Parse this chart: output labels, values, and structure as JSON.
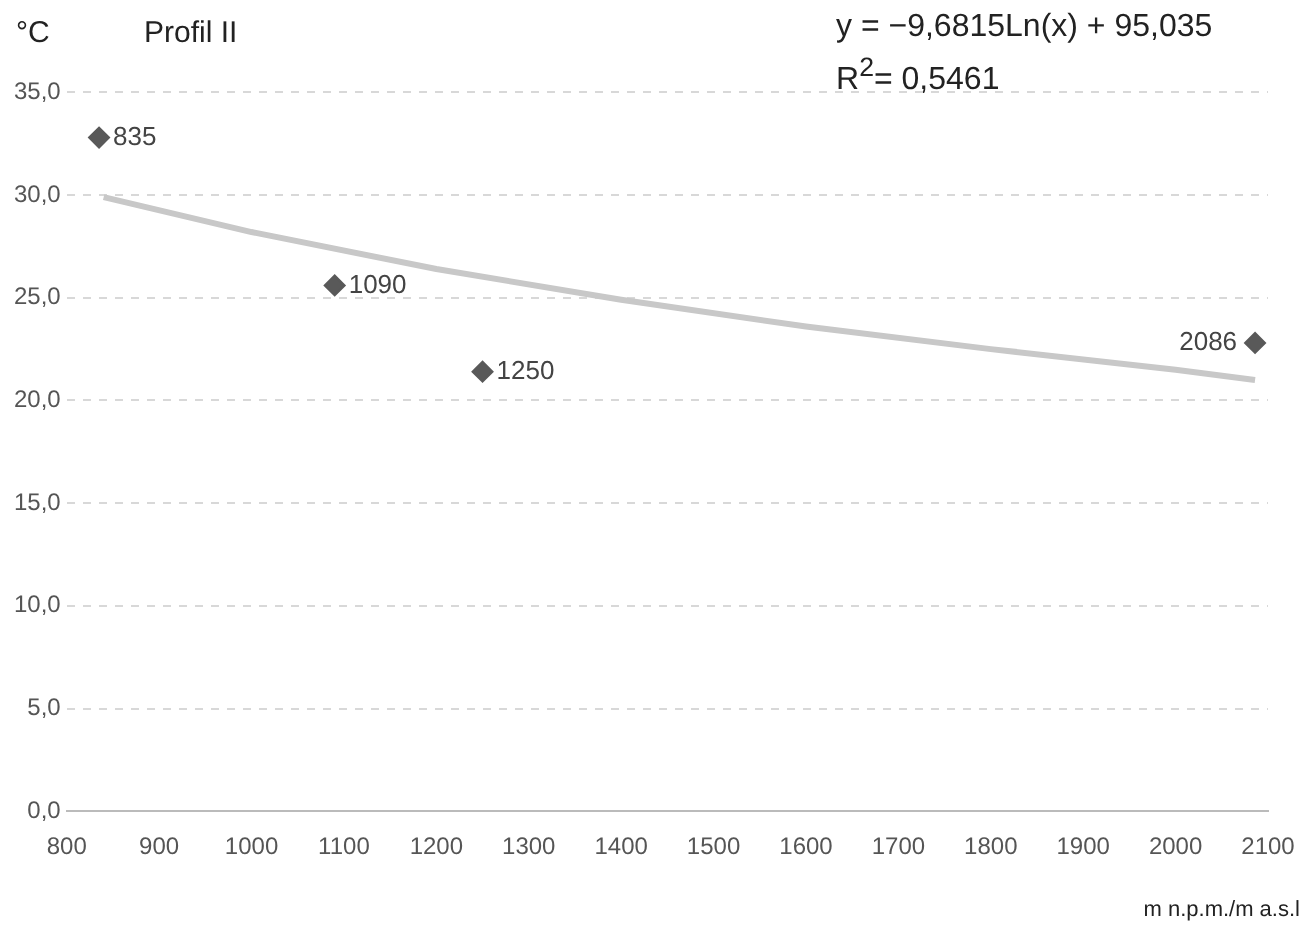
{
  "chart_data": {
    "type": "scatter",
    "title": "Profil II",
    "ylabel": "°C",
    "xlabel": "m n.p.m./m a.s.l",
    "annotations": [
      "y = −9,6815Ln(x) + 95,035",
      "R$^{2}$= 0,5461",
      {
        "text": "835",
        "x": 835,
        "y": 32.8
      },
      {
        "text": "1090",
        "x": 1090,
        "y": 25.6
      },
      {
        "text": "1250",
        "x": 1250,
        "y": 21.4
      },
      {
        "text": "2086",
        "x": 2086,
        "y": 22.8
      }
    ],
    "xlim": [
      800,
      2100
    ],
    "xticks": [
      800,
      900,
      1000,
      1100,
      1200,
      1300,
      1400,
      1500,
      1600,
      1700,
      1800,
      1900,
      2000,
      2100
    ],
    "ylim": [
      0,
      35
    ],
    "yticks": [
      {
        "value": 0,
        "label": "0,0"
      },
      {
        "value": 5,
        "label": "5,0"
      },
      {
        "value": 10,
        "label": "10,0"
      },
      {
        "value": 15,
        "label": "15,0"
      },
      {
        "value": 20,
        "label": "20,0"
      },
      {
        "value": 25,
        "label": "25,0"
      },
      {
        "value": 30,
        "label": "30,0"
      },
      {
        "value": 35,
        "label": "35,0"
      }
    ],
    "grid": "y",
    "legend": false,
    "marker": "diamond",
    "series": [
      {
        "color": "#595959",
        "x": [
          835,
          1090,
          1250,
          2086
        ],
        "values": [
          32.8,
          25.6,
          21.4,
          22.8
        ]
      },
      {
        "type": "line",
        "color": "#c8c8c8",
        "marker": "none",
        "x": [
          840,
          1000,
          1200,
          1400,
          1600,
          1800,
          2000,
          2086
        ],
        "values": [
          29.9,
          28.2,
          26.4,
          24.9,
          23.6,
          22.5,
          21.5,
          21.0
        ]
      }
    ]
  }
}
